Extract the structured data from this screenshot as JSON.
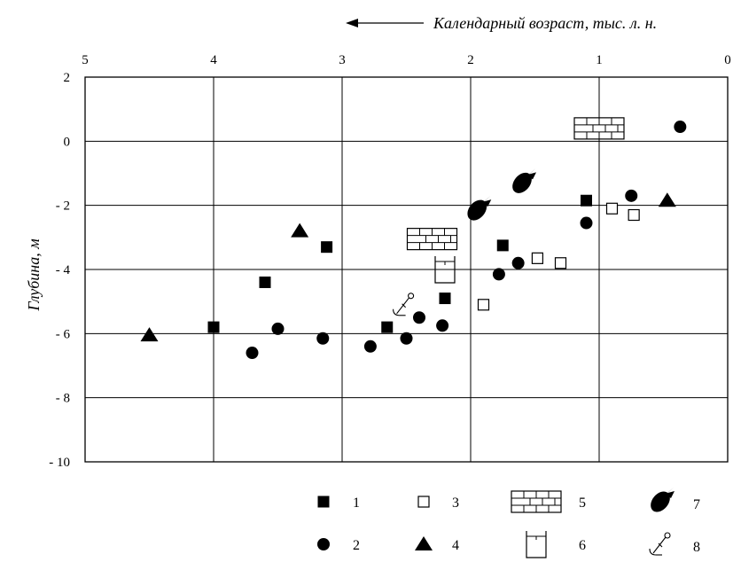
{
  "chart_data": {
    "type": "scatter",
    "title": "",
    "xlabel": "Календарный возраст, тыс. л. н.",
    "ylabel": "Глубина, м",
    "xlim": [
      5,
      0
    ],
    "ylim": [
      -10,
      2
    ],
    "x_reversed": true,
    "grid": true,
    "legend_position": "bottom",
    "x_ticks": [
      5,
      4,
      3,
      2,
      1,
      0
    ],
    "x_tick_labels": [
      "5",
      "4",
      "3",
      "2",
      "1",
      "0"
    ],
    "y_ticks": [
      2,
      0,
      -2,
      -4,
      -6,
      -8,
      -10
    ],
    "y_tick_labels": [
      "2",
      "0",
      "- 2",
      "- 4",
      "- 6",
      "- 8",
      "- 10"
    ],
    "series": [
      {
        "name": "1",
        "marker": "filled-square",
        "points": [
          [
            3.6,
            -4.4
          ],
          [
            3.12,
            -3.3
          ],
          [
            4.0,
            -5.8
          ],
          [
            2.65,
            -5.8
          ],
          [
            2.2,
            -4.9
          ],
          [
            1.75,
            -3.25
          ],
          [
            1.1,
            -1.85
          ]
        ]
      },
      {
        "name": "2",
        "marker": "filled-circle",
        "points": [
          [
            3.7,
            -6.6
          ],
          [
            3.5,
            -5.85
          ],
          [
            3.15,
            -6.15
          ],
          [
            2.78,
            -6.4
          ],
          [
            2.5,
            -6.15
          ],
          [
            2.4,
            -5.5
          ],
          [
            2.22,
            -5.75
          ],
          [
            1.78,
            -4.15
          ],
          [
            1.63,
            -3.8
          ],
          [
            1.1,
            -2.55
          ],
          [
            0.75,
            -1.7
          ],
          [
            0.37,
            0.45
          ]
        ]
      },
      {
        "name": "3",
        "marker": "open-square",
        "points": [
          [
            1.9,
            -5.1
          ],
          [
            1.48,
            -3.65
          ],
          [
            1.3,
            -3.8
          ],
          [
            0.9,
            -2.1
          ],
          [
            0.73,
            -2.3
          ]
        ]
      },
      {
        "name": "4",
        "marker": "filled-triangle",
        "points": [
          [
            4.5,
            -6.05
          ],
          [
            3.33,
            -2.8
          ],
          [
            0.47,
            -1.85
          ]
        ]
      },
      {
        "name": "5",
        "marker": "brick-icon",
        "points": [
          [
            2.3,
            -3.05
          ],
          [
            1.0,
            0.4
          ]
        ]
      },
      {
        "name": "6",
        "marker": "pot-icon",
        "points": [
          [
            2.2,
            -4.0
          ]
        ]
      },
      {
        "name": "7",
        "marker": "fish-icon",
        "points": [
          [
            1.6,
            -1.3
          ],
          [
            1.95,
            -2.15
          ]
        ]
      },
      {
        "name": "8",
        "marker": "anchor-icon",
        "points": [
          [
            2.52,
            -5.1
          ]
        ]
      }
    ]
  }
}
